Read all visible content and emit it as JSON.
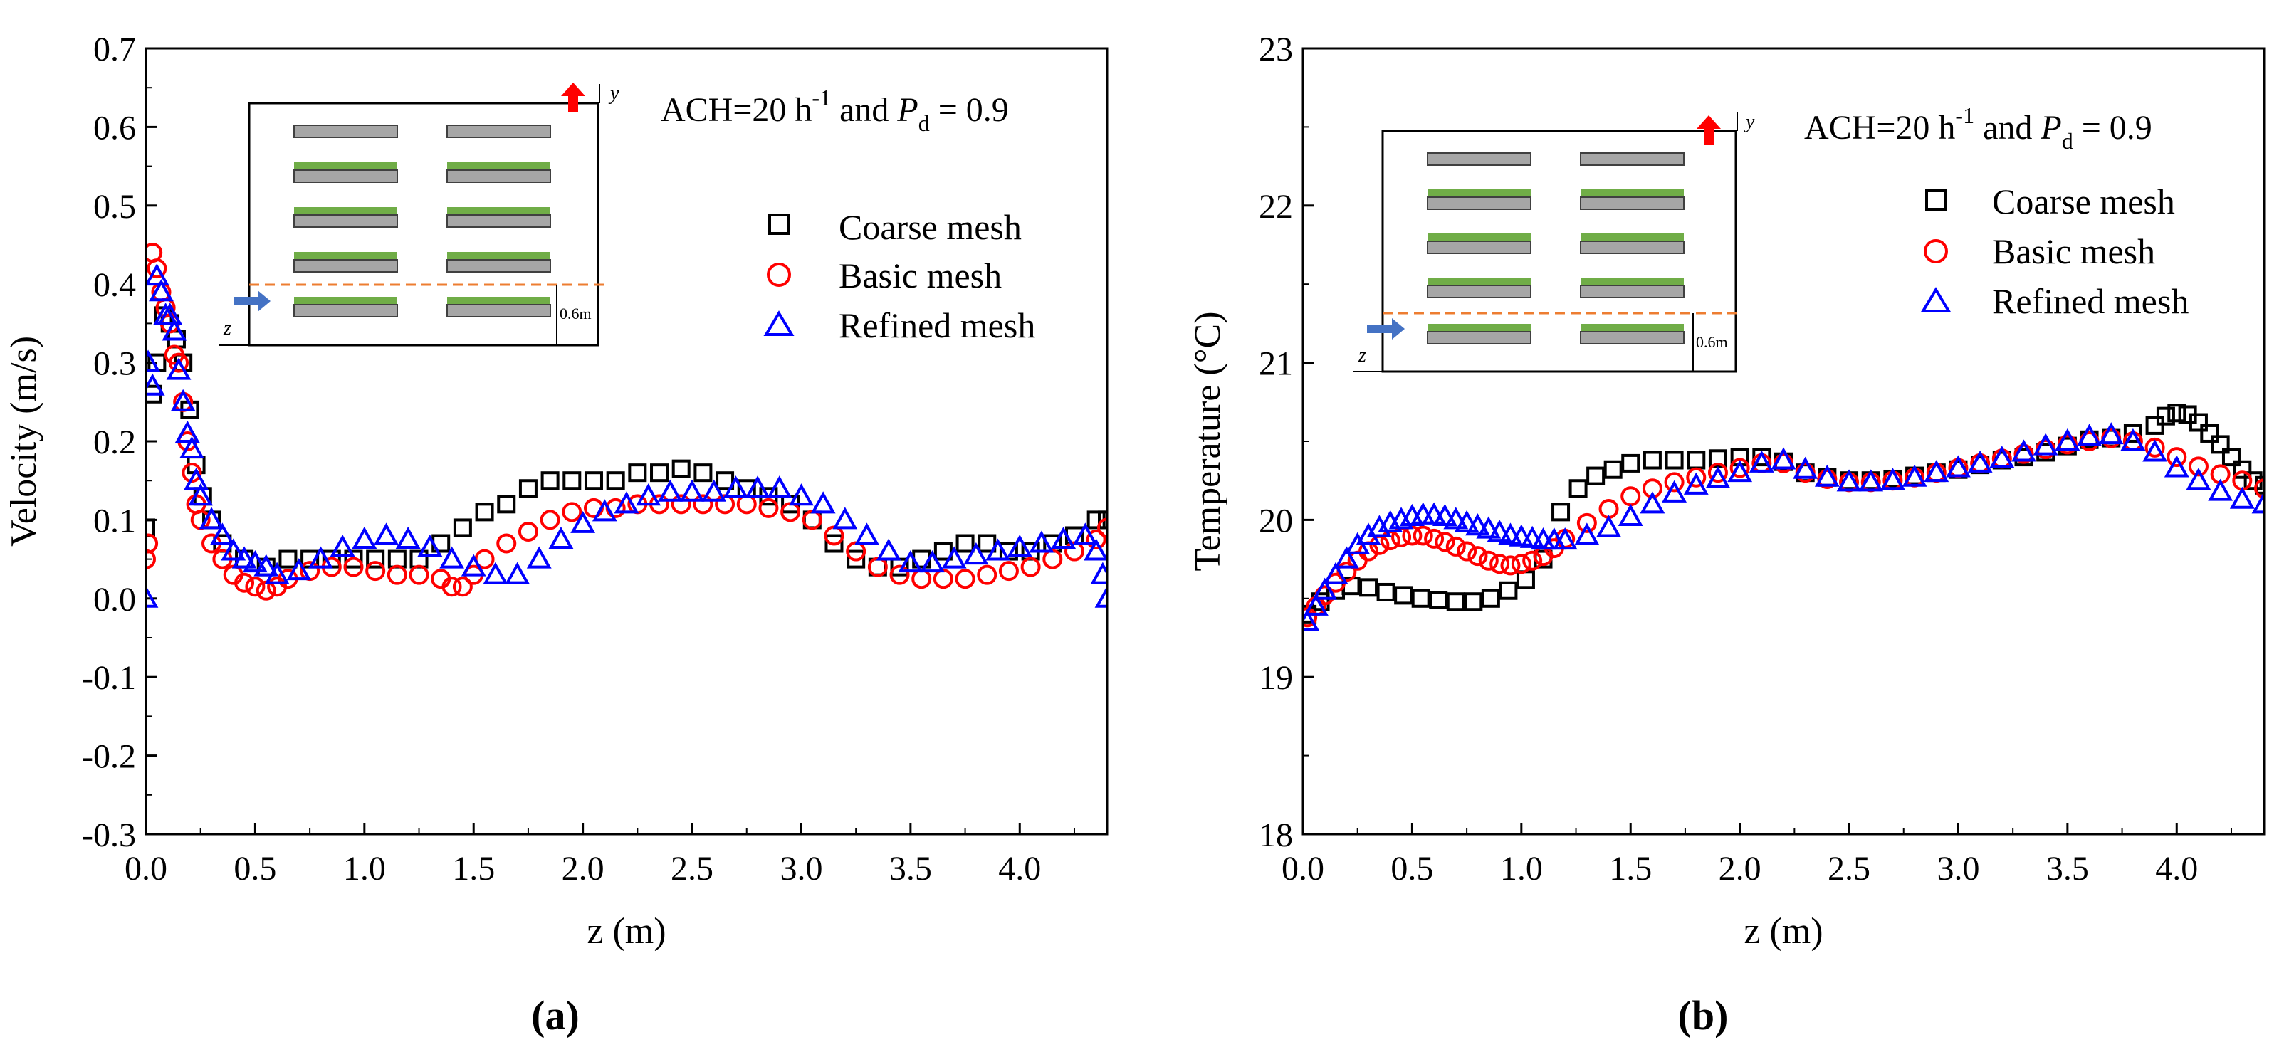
{
  "colors": {
    "coarse": "#000000",
    "basic": "#ff0000",
    "refined": "#0000ff",
    "shelf": "#a6a6a6",
    "plant": "#70ad47",
    "divider": "#ed7d31",
    "inlet_arrow": "#4472c4",
    "up_arrow": "#ff0000"
  },
  "inset": {
    "y_label": "y",
    "z_label": "z",
    "height_label": "0.6m"
  },
  "chart_data": [
    {
      "type": "scatter",
      "panel_label": "(a)",
      "annotation": "ACH=20 h⁻¹ and Pd = 0.9",
      "annotation_parts": {
        "prefix": "ACH=20 h",
        "sup": "-1",
        "mid": " and ",
        "var": "P",
        "sub": "d",
        "suffix": " = 0.9"
      },
      "xlabel": "z (m)",
      "ylabel": "Velocity (m/s)",
      "xlim": [
        0,
        4.4
      ],
      "ylim": [
        -0.3,
        0.7
      ],
      "xticks": [
        0.0,
        0.5,
        1.0,
        1.5,
        2.0,
        2.5,
        3.0,
        3.5,
        4.0
      ],
      "xtick_labels": [
        "0.0",
        "0.5",
        "1.0",
        "1.5",
        "2.0",
        "2.5",
        "3.0",
        "3.5",
        "4.0"
      ],
      "yticks": [
        -0.3,
        -0.2,
        -0.1,
        0.0,
        0.1,
        0.2,
        0.3,
        0.4,
        0.5,
        0.6,
        0.7
      ],
      "ytick_labels": [
        "-0.3",
        "-0.2",
        "-0.1",
        "0.0",
        "0.1",
        "0.2",
        "0.3",
        "0.4",
        "0.5",
        "0.6",
        "0.7"
      ],
      "grid": false,
      "legend_position": "top-right",
      "series": [
        {
          "name": "Coarse mesh",
          "marker": "square",
          "color": "#000000",
          "x": [
            0.0,
            0.03,
            0.05,
            0.08,
            0.11,
            0.14,
            0.17,
            0.2,
            0.23,
            0.26,
            0.3,
            0.35,
            0.45,
            0.55,
            0.65,
            0.75,
            0.85,
            0.95,
            1.05,
            1.15,
            1.25,
            1.35,
            1.45,
            1.55,
            1.65,
            1.75,
            1.85,
            1.95,
            2.05,
            2.15,
            2.25,
            2.35,
            2.45,
            2.55,
            2.65,
            2.75,
            2.85,
            2.95,
            3.05,
            3.15,
            3.25,
            3.35,
            3.45,
            3.55,
            3.65,
            3.75,
            3.85,
            3.95,
            4.05,
            4.15,
            4.25,
            4.35,
            4.4
          ],
          "y": [
            0.09,
            0.26,
            0.3,
            0.36,
            0.35,
            0.33,
            0.3,
            0.24,
            0.17,
            0.13,
            0.1,
            0.07,
            0.05,
            0.04,
            0.05,
            0.05,
            0.05,
            0.05,
            0.05,
            0.05,
            0.05,
            0.07,
            0.09,
            0.11,
            0.12,
            0.14,
            0.15,
            0.15,
            0.15,
            0.15,
            0.16,
            0.16,
            0.165,
            0.16,
            0.15,
            0.14,
            0.13,
            0.12,
            0.1,
            0.07,
            0.05,
            0.04,
            0.04,
            0.05,
            0.06,
            0.07,
            0.07,
            0.06,
            0.06,
            0.07,
            0.08,
            0.1,
            0.1
          ]
        },
        {
          "name": "Basic mesh",
          "marker": "circle",
          "color": "#ff0000",
          "x": [
            0.0,
            0.01,
            0.03,
            0.05,
            0.07,
            0.09,
            0.11,
            0.13,
            0.15,
            0.17,
            0.19,
            0.21,
            0.23,
            0.25,
            0.3,
            0.35,
            0.4,
            0.45,
            0.5,
            0.55,
            0.6,
            0.65,
            0.75,
            0.85,
            0.95,
            1.05,
            1.15,
            1.25,
            1.35,
            1.4,
            1.45,
            1.5,
            1.55,
            1.65,
            1.75,
            1.85,
            1.95,
            2.05,
            2.15,
            2.25,
            2.35,
            2.45,
            2.55,
            2.65,
            2.75,
            2.85,
            2.95,
            3.05,
            3.15,
            3.25,
            3.35,
            3.45,
            3.55,
            3.65,
            3.75,
            3.85,
            3.95,
            4.05,
            4.15,
            4.25,
            4.35,
            4.4
          ],
          "y": [
            0.05,
            0.07,
            0.44,
            0.42,
            0.39,
            0.37,
            0.35,
            0.31,
            0.3,
            0.25,
            0.2,
            0.16,
            0.12,
            0.1,
            0.07,
            0.05,
            0.03,
            0.02,
            0.015,
            0.01,
            0.015,
            0.025,
            0.035,
            0.04,
            0.04,
            0.035,
            0.03,
            0.03,
            0.025,
            0.015,
            0.015,
            0.03,
            0.05,
            0.07,
            0.085,
            0.1,
            0.11,
            0.115,
            0.115,
            0.12,
            0.12,
            0.12,
            0.12,
            0.12,
            0.12,
            0.115,
            0.11,
            0.1,
            0.08,
            0.06,
            0.04,
            0.03,
            0.025,
            0.025,
            0.025,
            0.03,
            0.035,
            0.04,
            0.05,
            0.06,
            0.075,
            0.09
          ]
        },
        {
          "name": "Refined mesh",
          "marker": "triangle",
          "color": "#0000ff",
          "x": [
            0.0,
            0.01,
            0.03,
            0.05,
            0.07,
            0.09,
            0.11,
            0.13,
            0.15,
            0.17,
            0.19,
            0.21,
            0.23,
            0.25,
            0.3,
            0.35,
            0.4,
            0.45,
            0.5,
            0.55,
            0.6,
            0.7,
            0.8,
            0.9,
            1.0,
            1.1,
            1.2,
            1.3,
            1.4,
            1.5,
            1.6,
            1.7,
            1.8,
            1.9,
            2.0,
            2.1,
            2.2,
            2.3,
            2.4,
            2.5,
            2.6,
            2.7,
            2.8,
            2.9,
            3.0,
            3.1,
            3.2,
            3.3,
            3.4,
            3.5,
            3.6,
            3.7,
            3.8,
            3.9,
            4.0,
            4.1,
            4.2,
            4.3,
            4.35,
            4.38,
            4.4
          ],
          "y": [
            0.0,
            0.3,
            0.27,
            0.41,
            0.39,
            0.36,
            0.36,
            0.34,
            0.29,
            0.25,
            0.21,
            0.19,
            0.15,
            0.13,
            0.1,
            0.08,
            0.06,
            0.05,
            0.045,
            0.04,
            0.03,
            0.035,
            0.05,
            0.065,
            0.075,
            0.08,
            0.075,
            0.065,
            0.05,
            0.04,
            0.03,
            0.03,
            0.05,
            0.075,
            0.095,
            0.11,
            0.12,
            0.13,
            0.135,
            0.135,
            0.135,
            0.14,
            0.14,
            0.14,
            0.13,
            0.12,
            0.1,
            0.08,
            0.06,
            0.045,
            0.045,
            0.05,
            0.055,
            0.06,
            0.065,
            0.07,
            0.075,
            0.08,
            0.06,
            0.03,
            0.0
          ]
        }
      ]
    },
    {
      "type": "scatter",
      "panel_label": "(b)",
      "annotation": "ACH=20 h⁻¹ and Pd = 0.9",
      "annotation_parts": {
        "prefix": "ACH=20 h",
        "sup": "-1",
        "mid": " and ",
        "var": "P",
        "sub": "d",
        "suffix": " = 0.9"
      },
      "xlabel": "z (m)",
      "ylabel": "Temperature (°C)",
      "xlim": [
        0,
        4.4
      ],
      "ylim": [
        18,
        23
      ],
      "xticks": [
        0.0,
        0.5,
        1.0,
        1.5,
        2.0,
        2.5,
        3.0,
        3.5,
        4.0
      ],
      "xtick_labels": [
        "0.0",
        "0.5",
        "1.0",
        "1.5",
        "2.0",
        "2.5",
        "3.0",
        "3.5",
        "4.0"
      ],
      "yticks": [
        18,
        19,
        20,
        21,
        22,
        23
      ],
      "ytick_labels": [
        "18",
        "19",
        "20",
        "21",
        "22",
        "23"
      ],
      "grid": false,
      "legend_position": "top-right",
      "series": [
        {
          "name": "Coarse mesh",
          "marker": "square",
          "color": "#000000",
          "x": [
            0.02,
            0.08,
            0.15,
            0.22,
            0.3,
            0.38,
            0.46,
            0.54,
            0.62,
            0.7,
            0.78,
            0.86,
            0.94,
            1.02,
            1.1,
            1.18,
            1.26,
            1.34,
            1.42,
            1.5,
            1.6,
            1.7,
            1.8,
            1.9,
            2.0,
            2.1,
            2.2,
            2.3,
            2.4,
            2.5,
            2.6,
            2.7,
            2.8,
            2.9,
            3.0,
            3.1,
            3.2,
            3.3,
            3.4,
            3.5,
            3.6,
            3.7,
            3.8,
            3.9,
            3.95,
            4.0,
            4.05,
            4.1,
            4.15,
            4.2,
            4.25,
            4.3,
            4.35,
            4.4
          ],
          "y": [
            19.4,
            19.48,
            19.55,
            19.58,
            19.57,
            19.54,
            19.52,
            19.5,
            19.49,
            19.48,
            19.48,
            19.5,
            19.55,
            19.62,
            19.75,
            20.05,
            20.2,
            20.28,
            20.32,
            20.36,
            20.38,
            20.38,
            20.38,
            20.39,
            20.4,
            20.4,
            20.37,
            20.3,
            20.27,
            20.25,
            20.25,
            20.26,
            20.28,
            20.3,
            20.32,
            20.35,
            20.38,
            20.4,
            20.43,
            20.47,
            20.51,
            20.52,
            20.55,
            20.6,
            20.66,
            20.68,
            20.67,
            20.62,
            20.55,
            20.48,
            20.4,
            20.32,
            20.25,
            20.22
          ]
        },
        {
          "name": "Basic mesh",
          "marker": "circle",
          "color": "#ff0000",
          "x": [
            0.02,
            0.06,
            0.1,
            0.15,
            0.2,
            0.25,
            0.3,
            0.35,
            0.4,
            0.45,
            0.5,
            0.55,
            0.6,
            0.65,
            0.7,
            0.75,
            0.8,
            0.85,
            0.9,
            0.95,
            1.0,
            1.05,
            1.1,
            1.15,
            1.2,
            1.3,
            1.4,
            1.5,
            1.6,
            1.7,
            1.8,
            1.9,
            2.0,
            2.1,
            2.2,
            2.3,
            2.4,
            2.5,
            2.6,
            2.7,
            2.8,
            2.9,
            3.0,
            3.1,
            3.2,
            3.3,
            3.4,
            3.5,
            3.6,
            3.7,
            3.8,
            3.9,
            4.0,
            4.1,
            4.2,
            4.3,
            4.4
          ],
          "y": [
            19.38,
            19.45,
            19.52,
            19.6,
            19.67,
            19.74,
            19.8,
            19.84,
            19.87,
            19.89,
            19.9,
            19.9,
            19.88,
            19.86,
            19.83,
            19.8,
            19.77,
            19.74,
            19.72,
            19.71,
            19.72,
            19.74,
            19.77,
            19.82,
            19.88,
            19.98,
            20.07,
            20.15,
            20.2,
            20.24,
            20.27,
            20.3,
            20.33,
            20.36,
            20.36,
            20.3,
            20.26,
            20.24,
            20.24,
            20.25,
            20.27,
            20.3,
            20.33,
            20.36,
            20.39,
            20.42,
            20.45,
            20.48,
            20.5,
            20.52,
            20.5,
            20.46,
            20.4,
            20.34,
            20.29,
            20.25,
            20.2
          ]
        },
        {
          "name": "Refined mesh",
          "marker": "triangle",
          "color": "#0000ff",
          "x": [
            0.02,
            0.06,
            0.1,
            0.15,
            0.2,
            0.25,
            0.3,
            0.35,
            0.4,
            0.45,
            0.5,
            0.55,
            0.6,
            0.65,
            0.7,
            0.75,
            0.8,
            0.85,
            0.9,
            0.95,
            1.0,
            1.05,
            1.1,
            1.15,
            1.2,
            1.3,
            1.4,
            1.5,
            1.6,
            1.7,
            1.8,
            1.9,
            2.0,
            2.1,
            2.2,
            2.3,
            2.4,
            2.5,
            2.6,
            2.7,
            2.8,
            2.9,
            3.0,
            3.1,
            3.2,
            3.3,
            3.4,
            3.5,
            3.6,
            3.7,
            3.8,
            3.9,
            4.0,
            4.1,
            4.2,
            4.3,
            4.4
          ],
          "y": [
            19.35,
            19.45,
            19.55,
            19.65,
            19.75,
            19.84,
            19.9,
            19.95,
            19.98,
            20.0,
            20.02,
            20.03,
            20.03,
            20.02,
            20.0,
            19.98,
            19.96,
            19.94,
            19.92,
            19.9,
            19.89,
            19.88,
            19.87,
            19.87,
            19.87,
            19.9,
            19.95,
            20.02,
            20.1,
            20.17,
            20.22,
            20.26,
            20.3,
            20.36,
            20.38,
            20.32,
            20.27,
            20.24,
            20.24,
            20.25,
            20.27,
            20.3,
            20.33,
            20.36,
            20.39,
            20.43,
            20.47,
            20.5,
            20.53,
            20.54,
            20.5,
            20.43,
            20.33,
            20.25,
            20.18,
            20.13,
            20.1
          ]
        }
      ]
    }
  ]
}
